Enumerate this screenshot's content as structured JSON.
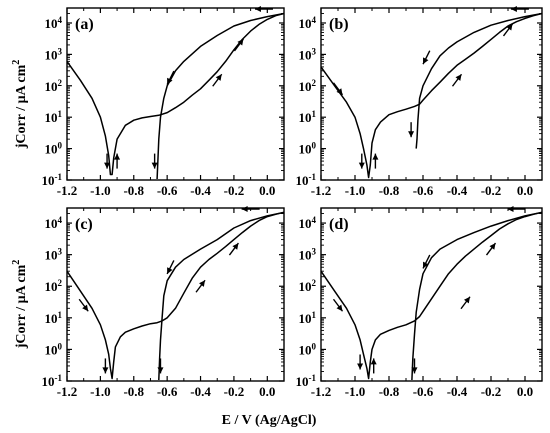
{
  "figure": {
    "ylabel_prefix": "jCorr / μA cm",
    "ylabel_sup": "2",
    "xlabel": "E / V (Ag/AgCl)"
  },
  "chart_data": [
    {
      "type": "line",
      "panel": "(a)",
      "xlim": [
        -1.2,
        0.1
      ],
      "ylim": [
        0.1,
        30000
      ],
      "yscale": "log",
      "x_ticks": [
        -1.2,
        -1.0,
        -0.8,
        -0.6,
        -0.4,
        -0.2,
        0.0
      ],
      "x_tick_labels": [
        "-1.2",
        "-1.0",
        "-0.8",
        "-0.6",
        "-0.4",
        "-0.2",
        "0.0"
      ],
      "y_ticks": [
        0.1,
        1,
        10,
        100,
        1000,
        10000
      ],
      "y_tick_base": "10",
      "y_tick_exponents": [
        "-1",
        "0",
        "1",
        "2",
        "3",
        "4"
      ],
      "series": [
        {
          "x": [
            -1.2,
            -1.12,
            -1.05,
            -1.0,
            -0.97,
            -0.95,
            -0.94,
            -0.93,
            -0.92,
            -0.9,
            -0.85,
            -0.8,
            -0.75,
            -0.7,
            -0.65,
            -0.6,
            -0.55,
            -0.5,
            -0.45,
            -0.4,
            -0.35,
            -0.3,
            -0.25,
            -0.2,
            -0.15,
            -0.1,
            -0.05,
            0.0,
            0.05,
            0.1
          ],
          "y": [
            600,
            150,
            40,
            10,
            2.5,
            0.6,
            0.15,
            0.15,
            0.5,
            2.0,
            5.5,
            8,
            9.5,
            10.5,
            11.5,
            14,
            20,
            30,
            50,
            80,
            150,
            280,
            600,
            1400,
            3000,
            5500,
            9000,
            13000,
            17000,
            20000
          ]
        },
        {
          "x": [
            0.1,
            0.0,
            -0.1,
            -0.2,
            -0.3,
            -0.4,
            -0.5,
            -0.55,
            -0.6,
            -0.62,
            -0.64,
            -0.65,
            -0.655,
            -0.66
          ],
          "y": [
            20000,
            16000,
            12000,
            8000,
            4000,
            1800,
            600,
            300,
            100,
            40,
            10,
            2,
            0.5,
            0.1
          ]
        }
      ],
      "arrows": [
        {
          "x": -0.96,
          "y": 0.4,
          "dir": "down"
        },
        {
          "x": -0.9,
          "y": 0.4,
          "dir": "up"
        },
        {
          "x": -0.675,
          "y": 0.4,
          "dir": "down"
        },
        {
          "x": -0.58,
          "y": 180,
          "dir": "down-left"
        },
        {
          "x": -0.3,
          "y": 150,
          "dir": "up-right"
        },
        {
          "x": -0.17,
          "y": 2000,
          "dir": "up-right"
        },
        {
          "x": -0.02,
          "y": 50000,
          "dir": "left"
        }
      ]
    },
    {
      "type": "line",
      "panel": "(b)",
      "xlim": [
        -1.2,
        0.1
      ],
      "ylim": [
        0.1,
        30000
      ],
      "yscale": "log",
      "x_ticks": [
        -1.2,
        -1.0,
        -0.8,
        -0.6,
        -0.4,
        -0.2,
        0.0
      ],
      "x_tick_labels": [
        "-1.2",
        "-1.0",
        "-0.8",
        "-0.6",
        "-0.4",
        "-0.2",
        "0.0"
      ],
      "y_ticks": [
        0.1,
        1,
        10,
        100,
        1000,
        10000
      ],
      "y_tick_base": "10",
      "y_tick_exponents": [
        "-1",
        "0",
        "1",
        "2",
        "3",
        "4"
      ],
      "series": [
        {
          "x": [
            -1.2,
            -1.12,
            -1.05,
            -1.0,
            -0.97,
            -0.95,
            -0.93,
            -0.92,
            -0.91,
            -0.9,
            -0.88,
            -0.85,
            -0.8,
            -0.75,
            -0.7,
            -0.65,
            -0.62,
            -0.6,
            -0.55,
            -0.5,
            -0.45,
            -0.4,
            -0.35,
            -0.3,
            -0.25,
            -0.2,
            -0.15,
            -0.1,
            -0.05,
            0.0,
            0.05,
            0.1
          ],
          "y": [
            400,
            100,
            30,
            10,
            3,
            1.0,
            0.3,
            0.12,
            0.3,
            1.5,
            4,
            7,
            12,
            15,
            18,
            22,
            26,
            35,
            70,
            130,
            250,
            450,
            700,
            1100,
            1800,
            3000,
            5000,
            8000,
            11000,
            14000,
            17000,
            20000
          ]
        },
        {
          "x": [
            0.1,
            0.0,
            -0.1,
            -0.2,
            -0.3,
            -0.4,
            -0.45,
            -0.5,
            -0.55,
            -0.6,
            -0.62,
            -0.63,
            -0.635,
            -0.64
          ],
          "y": [
            20000,
            16000,
            12000,
            8500,
            5000,
            2500,
            1600,
            900,
            350,
            100,
            40,
            8,
            2,
            1
          ]
        }
      ],
      "arrows": [
        {
          "x": -1.1,
          "y": 80,
          "dir": "down-right"
        },
        {
          "x": -0.96,
          "y": 0.4,
          "dir": "down"
        },
        {
          "x": -0.88,
          "y": 0.4,
          "dir": "up"
        },
        {
          "x": -0.67,
          "y": 4,
          "dir": "down"
        },
        {
          "x": -0.58,
          "y": 800,
          "dir": "down-left"
        },
        {
          "x": -0.4,
          "y": 150,
          "dir": "up-right"
        },
        {
          "x": -0.1,
          "y": 6000,
          "dir": "up-right"
        },
        {
          "x": -0.03,
          "y": 50000,
          "dir": "left"
        }
      ]
    },
    {
      "type": "line",
      "panel": "(c)",
      "xlim": [
        -1.2,
        0.1
      ],
      "ylim": [
        0.1,
        30000
      ],
      "yscale": "log",
      "x_ticks": [
        -1.2,
        -1.0,
        -0.8,
        -0.6,
        -0.4,
        -0.2,
        0.0
      ],
      "x_tick_labels": [
        "-1.2",
        "-1.0",
        "-0.8",
        "-0.6",
        "-0.4",
        "-0.2",
        "0.0"
      ],
      "y_ticks": [
        0.1,
        1,
        10,
        100,
        1000,
        10000
      ],
      "y_tick_base": "10",
      "y_tick_exponents": [
        "-1",
        "0",
        "1",
        "2",
        "3",
        "4"
      ],
      "series": [
        {
          "x": [
            -1.2,
            -1.12,
            -1.05,
            -1.0,
            -0.97,
            -0.95,
            -0.94,
            -0.93,
            -0.92,
            -0.91,
            -0.88,
            -0.85,
            -0.8,
            -0.75,
            -0.7,
            -0.66,
            -0.63,
            -0.6,
            -0.55,
            -0.5,
            -0.45,
            -0.4,
            -0.35,
            -0.3,
            -0.25,
            -0.2,
            -0.15,
            -0.1,
            -0.05,
            0.0,
            0.05,
            0.1
          ],
          "y": [
            300,
            70,
            20,
            6,
            2,
            0.7,
            0.25,
            0.12,
            0.4,
            1.2,
            2.5,
            3.5,
            4.5,
            5.5,
            6.5,
            7,
            8,
            10,
            20,
            60,
            180,
            400,
            700,
            1100,
            1800,
            3000,
            5000,
            8000,
            12000,
            16000,
            19000,
            22000
          ]
        },
        {
          "x": [
            0.1,
            0.0,
            -0.1,
            -0.2,
            -0.3,
            -0.4,
            -0.5,
            -0.55,
            -0.6,
            -0.62,
            -0.63,
            -0.64,
            -0.645,
            -0.65
          ],
          "y": [
            22000,
            17000,
            12000,
            7000,
            3000,
            1500,
            700,
            400,
            150,
            50,
            10,
            2,
            0.5,
            0.1
          ]
        }
      ],
      "arrows": [
        {
          "x": -1.1,
          "y": 25,
          "dir": "down-right"
        },
        {
          "x": -0.97,
          "y": 0.3,
          "dir": "down"
        },
        {
          "x": -0.64,
          "y": 0.3,
          "dir": "down"
        },
        {
          "x": -0.58,
          "y": 400,
          "dir": "down-left"
        },
        {
          "x": -0.4,
          "y": 100,
          "dir": "up-right"
        },
        {
          "x": -0.2,
          "y": 1500,
          "dir": "up-right"
        },
        {
          "x": -0.1,
          "y": 50000,
          "dir": "left"
        }
      ]
    },
    {
      "type": "line",
      "panel": "(d)",
      "xlim": [
        -1.2,
        0.1
      ],
      "ylim": [
        0.1,
        30000
      ],
      "yscale": "log",
      "x_ticks": [
        -1.2,
        -1.0,
        -0.8,
        -0.6,
        -0.4,
        -0.2,
        0.0
      ],
      "x_tick_labels": [
        "-1.2",
        "-1.0",
        "-0.8",
        "-0.6",
        "-0.4",
        "-0.2",
        "0.0"
      ],
      "y_ticks": [
        0.1,
        1,
        10,
        100,
        1000,
        10000
      ],
      "y_tick_base": "10",
      "y_tick_exponents": [
        "-1",
        "0",
        "1",
        "2",
        "3",
        "4"
      ],
      "series": [
        {
          "x": [
            -1.2,
            -1.12,
            -1.05,
            -1.0,
            -0.97,
            -0.95,
            -0.93,
            -0.92,
            -0.91,
            -0.9,
            -0.88,
            -0.85,
            -0.8,
            -0.75,
            -0.7,
            -0.65,
            -0.62,
            -0.6,
            -0.55,
            -0.5,
            -0.45,
            -0.4,
            -0.35,
            -0.3,
            -0.25,
            -0.2,
            -0.15,
            -0.1,
            -0.05,
            0.0,
            0.05,
            0.1
          ],
          "y": [
            300,
            70,
            20,
            6,
            2,
            0.7,
            0.25,
            0.12,
            0.4,
            1.0,
            2.0,
            3.0,
            4.0,
            5.0,
            6.0,
            8.0,
            11,
            16,
            40,
            100,
            250,
            500,
            900,
            1500,
            2500,
            4000,
            6500,
            9500,
            13000,
            16000,
            19000,
            22000
          ]
        },
        {
          "x": [
            0.1,
            0.0,
            -0.1,
            -0.2,
            -0.3,
            -0.4,
            -0.5,
            -0.55,
            -0.6,
            -0.62,
            -0.64,
            -0.65,
            -0.66,
            -0.665
          ],
          "y": [
            22000,
            17000,
            12000,
            8000,
            5000,
            3000,
            1500,
            800,
            250,
            80,
            15,
            3,
            0.5,
            0.1
          ]
        }
      ],
      "arrows": [
        {
          "x": -1.1,
          "y": 25,
          "dir": "down-right"
        },
        {
          "x": -0.97,
          "y": 0.4,
          "dir": "down"
        },
        {
          "x": -0.89,
          "y": 0.3,
          "dir": "up"
        },
        {
          "x": -0.65,
          "y": 0.3,
          "dir": "down"
        },
        {
          "x": -0.58,
          "y": 600,
          "dir": "down-left"
        },
        {
          "x": -0.35,
          "y": 30,
          "dir": "up-right"
        },
        {
          "x": -0.2,
          "y": 1500,
          "dir": "up-right"
        },
        {
          "x": -0.05,
          "y": 50000,
          "dir": "left"
        }
      ]
    }
  ]
}
